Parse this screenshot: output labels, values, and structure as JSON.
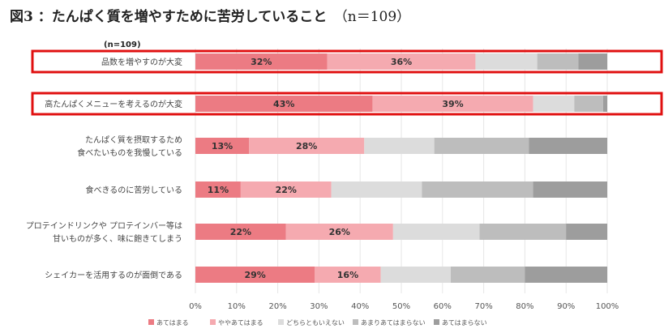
{
  "title": "図3 ：たんぱく質を増やすために苦労していること",
  "title_n": "（n＝109）",
  "chart_data": {
    "type": "bar",
    "orientation": "horizontal",
    "stacked": true,
    "n_label": "(n=109)",
    "categories": [
      [
        "品数を増やすのが大変"
      ],
      [
        "高たんぱくメニューを考えるのが大変"
      ],
      [
        "たんぱく質を摂取するため",
        "食べたいものを我慢している"
      ],
      [
        "食べきるのに苦労している"
      ],
      [
        "プロテインドリンクや プロテインバー等は",
        "甘いものが多く、味に飽きてしまう"
      ],
      [
        "シェイカーを活用するのが面倒である"
      ]
    ],
    "series": [
      {
        "name": "あてはまる",
        "color": "#ec7b83",
        "values": [
          32,
          43,
          13,
          11,
          22,
          29
        ]
      },
      {
        "name": "ややあてはまる",
        "color": "#f5aab0",
        "values": [
          36,
          39,
          28,
          22,
          26,
          16
        ]
      },
      {
        "name": "どちらともいえない",
        "color": "#dcdcdc",
        "values": [
          15,
          10,
          17,
          22,
          21,
          17
        ]
      },
      {
        "name": "あまりあてはまらない",
        "color": "#bdbdbd",
        "values": [
          10,
          7,
          23,
          27,
          21,
          18
        ]
      },
      {
        "name": "あてはまらない",
        "color": "#9d9d9d",
        "values": [
          7,
          1,
          19,
          18,
          10,
          20
        ]
      }
    ],
    "labeled_series": [
      0,
      1
    ],
    "value_suffix": "%",
    "xlim": [
      0,
      100
    ],
    "xticks": [
      "0%",
      "10%",
      "20%",
      "30%",
      "40%",
      "50%",
      "60%",
      "70%",
      "80%",
      "90%",
      "100%"
    ],
    "legend_position": "bottom",
    "highlighted_rows": [
      0,
      1
    ],
    "highlight_color": "#e01010"
  }
}
